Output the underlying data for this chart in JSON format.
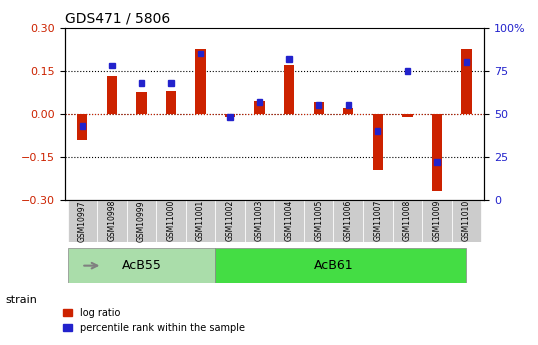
{
  "title": "GDS471 / 5806",
  "samples": [
    "GSM10997",
    "GSM10998",
    "GSM10999",
    "GSM11000",
    "GSM11001",
    "GSM11002",
    "GSM11003",
    "GSM11004",
    "GSM11005",
    "GSM11006",
    "GSM11007",
    "GSM11008",
    "GSM11009",
    "GSM11010"
  ],
  "log_ratio": [
    -0.09,
    0.13,
    0.075,
    0.08,
    0.225,
    -0.01,
    0.045,
    0.17,
    0.04,
    0.02,
    -0.195,
    -0.01,
    -0.27,
    0.225
  ],
  "percentile_rank": [
    43,
    78,
    68,
    68,
    85,
    48,
    57,
    82,
    55,
    55,
    40,
    75,
    22,
    80
  ],
  "strain_groups": [
    {
      "label": "AcB55",
      "start": 0,
      "end": 5,
      "color": "#90ee90"
    },
    {
      "label": "AcB61",
      "start": 5,
      "end": 13,
      "color": "#00cc00"
    }
  ],
  "ylim": [
    -0.3,
    0.3
  ],
  "yticks_left": [
    -0.3,
    -0.15,
    0.0,
    0.15,
    0.3
  ],
  "yticks_right": [
    0,
    25,
    50,
    75,
    100
  ],
  "hlines": [
    -0.15,
    0.0,
    0.15
  ],
  "bar_color_red": "#cc2200",
  "bar_color_blue": "#2222cc",
  "bar_width": 0.35,
  "tick_label_color_left": "#cc2200",
  "tick_label_color_right": "#2222cc",
  "bg_color": "#ffffff",
  "plot_bg": "#ffffff",
  "grid_color": "#000000",
  "label_area_color": "#cccccc",
  "strain_group1_color": "#aaddaa",
  "strain_group2_color": "#44dd44"
}
